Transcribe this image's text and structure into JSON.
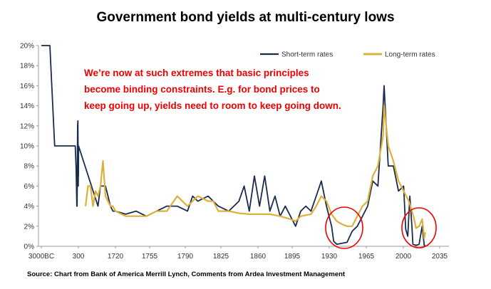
{
  "chart_data": {
    "type": "line",
    "title": "Government bond yields at multi-century lows",
    "annotation": [
      "We’re now at such extremes that basic principles",
      "become binding constraints. E.g. for bond prices to",
      "keep going up, yields need to room to keep going down."
    ],
    "source": "Source: Chart from Bank of America Merrill Lynch, Comments from Ardea Investment Management",
    "x_tick_labels": [
      "3000BC",
      "300",
      "1720",
      "1755",
      "1790",
      "1825",
      "1860",
      "1895",
      "1930",
      "1965",
      "2000",
      "2035"
    ],
    "y_tick_labels": [
      "0%",
      "2%",
      "4%",
      "6%",
      "8%",
      "10%",
      "12%",
      "14%",
      "16%",
      "18%",
      "20%"
    ],
    "ylim": [
      0,
      20
    ],
    "legend_position": "top-right",
    "grid": false,
    "colors": {
      "short": "#1a2b4e",
      "long": "#dbb13b",
      "highlight": "#ee0000"
    },
    "series": [
      {
        "name": "Short-term rates",
        "points": [
          [
            "3000BC",
            20
          ],
          [
            "3000BC",
            20
          ],
          [
            "-1500",
            20
          ],
          [
            "-1200",
            10
          ],
          [
            "0",
            10
          ],
          [
            "100",
            10
          ],
          [
            "150",
            8
          ],
          [
            "180",
            6
          ],
          [
            "200",
            4
          ],
          [
            "220",
            4
          ],
          [
            "250",
            12
          ],
          [
            "270",
            12.5
          ],
          [
            "290",
            6
          ],
          [
            "300",
            8
          ],
          [
            "310",
            7
          ],
          [
            "320",
            10
          ],
          [
            "1650",
            4
          ],
          [
            "1660",
            6
          ],
          [
            "1670",
            6
          ],
          [
            "1680",
            6
          ],
          [
            "1690",
            5
          ],
          [
            "1700",
            4
          ],
          [
            "1710",
            3.5
          ],
          [
            "1720",
            3.5
          ],
          [
            "1730",
            3.2
          ],
          [
            "1740",
            3.5
          ],
          [
            "1750",
            3
          ],
          [
            "1760",
            3.5
          ],
          [
            "1770",
            4
          ],
          [
            "1780",
            4
          ],
          [
            "1790",
            3.5
          ],
          [
            "1795",
            5
          ],
          [
            "1800",
            4.5
          ],
          [
            "1810",
            5
          ],
          [
            "1820",
            4
          ],
          [
            "1830",
            3.5
          ],
          [
            "1840",
            4.5
          ],
          [
            "1845",
            6
          ],
          [
            "1850",
            3.5
          ],
          [
            "1855",
            7
          ],
          [
            "1860",
            4
          ],
          [
            "1865",
            7
          ],
          [
            "1870",
            3.5
          ],
          [
            "1875",
            5
          ],
          [
            "1880",
            3
          ],
          [
            "1885",
            4
          ],
          [
            "1890",
            3
          ],
          [
            "1895",
            2
          ],
          [
            "1900",
            3.5
          ],
          [
            "1905",
            4
          ],
          [
            "1910",
            3.5
          ],
          [
            "1915",
            5
          ],
          [
            "1920",
            6.5
          ],
          [
            "1925",
            4
          ],
          [
            "1930",
            2
          ],
          [
            "1932",
            0.5
          ],
          [
            "1935",
            0.2
          ],
          [
            "1940",
            0.3
          ],
          [
            "1945",
            0.4
          ],
          [
            "1950",
            1.5
          ],
          [
            "1955",
            2
          ],
          [
            "1960",
            3
          ],
          [
            "1965",
            4
          ],
          [
            "1970",
            6.5
          ],
          [
            "1975",
            6
          ],
          [
            "1980",
            14
          ],
          [
            "1981",
            16
          ],
          [
            "1985",
            8
          ],
          [
            "1990",
            8
          ],
          [
            "1995",
            5.5
          ],
          [
            "2000",
            6
          ],
          [
            "2002",
            1.7
          ],
          [
            "2004",
            1
          ],
          [
            "2006",
            5
          ],
          [
            "2008",
            2
          ],
          [
            "2009",
            0.2
          ],
          [
            "2012",
            0.1
          ],
          [
            "2015",
            0.2
          ],
          [
            "2018",
            2
          ],
          [
            "2020",
            0.1
          ],
          [
            "2021",
            0.1
          ]
        ]
      },
      {
        "name": "Long-term rates",
        "points": [
          [
            "1600",
            4
          ],
          [
            "1610",
            6
          ],
          [
            "1620",
            6
          ],
          [
            "1630",
            4
          ],
          [
            "1640",
            5.5
          ],
          [
            "1650",
            5
          ],
          [
            "1660",
            6
          ],
          [
            "1670",
            8.5
          ],
          [
            "1680",
            5
          ],
          [
            "1690",
            4.5
          ],
          [
            "1700",
            4
          ],
          [
            "1710",
            4
          ],
          [
            "1720",
            3.5
          ],
          [
            "1730",
            3
          ],
          [
            "1740",
            3
          ],
          [
            "1750",
            3
          ],
          [
            "1760",
            3.5
          ],
          [
            "1770",
            3.5
          ],
          [
            "1780",
            5
          ],
          [
            "1790",
            4
          ],
          [
            "1800",
            5
          ],
          [
            "1810",
            4.5
          ],
          [
            "1815",
            4.5
          ],
          [
            "1820",
            3.5
          ],
          [
            "1830",
            3.5
          ],
          [
            "1840",
            3.3
          ],
          [
            "1850",
            3.2
          ],
          [
            "1860",
            3.2
          ],
          [
            "1870",
            3.2
          ],
          [
            "1880",
            3
          ],
          [
            "1890",
            2.7
          ],
          [
            "1895",
            2.5
          ],
          [
            "1900",
            3
          ],
          [
            "1910",
            3.2
          ],
          [
            "1915",
            4
          ],
          [
            "1920",
            5
          ],
          [
            "1925",
            4.5
          ],
          [
            "1930",
            3.2
          ],
          [
            "1935",
            2.5
          ],
          [
            "1940",
            2.2
          ],
          [
            "1945",
            2
          ],
          [
            "1950",
            2
          ],
          [
            "1955",
            3
          ],
          [
            "1960",
            4
          ],
          [
            "1965",
            4.5
          ],
          [
            "1970",
            7
          ],
          [
            "1975",
            8
          ],
          [
            "1980",
            11
          ],
          [
            "1981",
            14
          ],
          [
            "1985",
            10
          ],
          [
            "1990",
            8.5
          ],
          [
            "1995",
            6.5
          ],
          [
            "2000",
            5.5
          ],
          [
            "2005",
            4.5
          ],
          [
            "2008",
            3.5
          ],
          [
            "2010",
            2.8
          ],
          [
            "2012",
            1.8
          ],
          [
            "2015",
            2
          ],
          [
            "2018",
            2.7
          ],
          [
            "2020",
            0.8
          ],
          [
            "2021",
            1.4
          ]
        ]
      }
    ],
    "highlight_circles": [
      {
        "label": "1930s lows"
      },
      {
        "label": "current lows"
      }
    ]
  }
}
